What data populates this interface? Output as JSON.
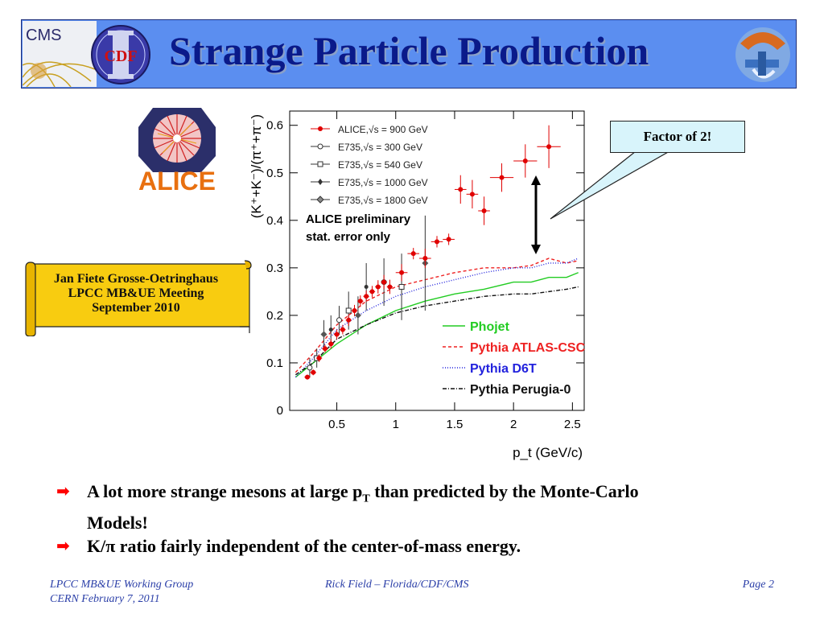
{
  "header": {
    "title": "Strange Particle Production",
    "logo_cms_text": "CMS",
    "logo_cdf_text": "CDF"
  },
  "alice_logo": {
    "text": "ALICE"
  },
  "scroll": {
    "lines": [
      "Jan Fiete Grosse-Oetringhaus",
      "LPCC MB&UE Meeting",
      "September 2010"
    ]
  },
  "callout": {
    "text": "Factor of 2!"
  },
  "chart_data": {
    "type": "scatter",
    "xlabel": "p_t (GeV/c)",
    "ylabel": "(K⁺+K⁻)/(π⁺+π⁻)",
    "xlim": [
      0.1,
      2.6
    ],
    "ylim": [
      0,
      0.63
    ],
    "x_ticks": [
      "0.5",
      "1",
      "1.5",
      "2",
      "2.5"
    ],
    "x_tick_values": [
      0.5,
      1,
      1.5,
      2,
      2.5
    ],
    "y_ticks": [
      "0",
      "0.1",
      "0.2",
      "0.3",
      "0.4",
      "0.5",
      "0.6"
    ],
    "y_tick_values": [
      0,
      0.1,
      0.2,
      0.3,
      0.4,
      0.5,
      0.6
    ],
    "annotation": [
      "ALICE preliminary",
      "stat. error only"
    ],
    "legend_markers": [
      {
        "name": "ALICE,√s = 900 GeV",
        "color": "#e00000",
        "marker": "filled-circle"
      },
      {
        "name": "E735,√s = 300 GeV",
        "color": "#333333",
        "marker": "open-circle"
      },
      {
        "name": "E735,√s = 540 GeV",
        "color": "#333333",
        "marker": "open-square"
      },
      {
        "name": "E735,√s = 1000 GeV",
        "color": "#333333",
        "marker": "star"
      },
      {
        "name": "E735,√s = 1800 GeV",
        "color": "#333333",
        "marker": "diamond"
      }
    ],
    "legend_curves": [
      {
        "name": "Phojet",
        "color": "#22cc22",
        "dash": ""
      },
      {
        "name": "Pythia ATLAS-CSC",
        "color": "#ee2222",
        "dash": "4,3"
      },
      {
        "name": "Pythia D6T",
        "color": "#2222dd",
        "dash": "1,2"
      },
      {
        "name": "Pythia Perugia-0",
        "color": "#111111",
        "dash": "5,2,1,2"
      }
    ],
    "alice": {
      "x": [
        0.25,
        0.3,
        0.35,
        0.4,
        0.45,
        0.5,
        0.55,
        0.6,
        0.65,
        0.7,
        0.75,
        0.8,
        0.85,
        0.9,
        0.95,
        1.05,
        1.15,
        1.25,
        1.35,
        1.45,
        1.55,
        1.65,
        1.75,
        1.9,
        2.1,
        2.3
      ],
      "y": [
        0.07,
        0.08,
        0.11,
        0.13,
        0.14,
        0.16,
        0.17,
        0.19,
        0.21,
        0.23,
        0.24,
        0.25,
        0.26,
        0.27,
        0.26,
        0.29,
        0.33,
        0.32,
        0.355,
        0.36,
        0.465,
        0.455,
        0.42,
        0.49,
        0.525,
        0.555
      ],
      "err": [
        0.005,
        0.006,
        0.008,
        0.008,
        0.01,
        0.01,
        0.01,
        0.012,
        0.012,
        0.012,
        0.012,
        0.012,
        0.014,
        0.015,
        0.015,
        0.018,
        0.012,
        0.02,
        0.012,
        0.012,
        0.03,
        0.03,
        0.03,
        0.03,
        0.035,
        0.045
      ],
      "xerr": [
        0.025,
        0.025,
        0.025,
        0.025,
        0.025,
        0.025,
        0.025,
        0.025,
        0.025,
        0.025,
        0.025,
        0.025,
        0.025,
        0.025,
        0.025,
        0.05,
        0.05,
        0.05,
        0.05,
        0.05,
        0.05,
        0.05,
        0.05,
        0.1,
        0.1,
        0.1
      ]
    },
    "e735": {
      "x": [
        0.27,
        0.33,
        0.39,
        0.45,
        0.52,
        0.6,
        0.68,
        0.75,
        0.9,
        1.05,
        1.25
      ],
      "y": [
        0.09,
        0.11,
        0.16,
        0.17,
        0.19,
        0.21,
        0.2,
        0.26,
        0.27,
        0.26,
        0.31
      ],
      "err": [
        0.02,
        0.02,
        0.03,
        0.03,
        0.03,
        0.04,
        0.04,
        0.05,
        0.05,
        0.07,
        0.1
      ]
    },
    "curves": {
      "x": [
        0.15,
        0.3,
        0.5,
        0.75,
        1.0,
        1.25,
        1.5,
        1.75,
        2.0,
        2.15,
        2.3,
        2.45,
        2.55
      ],
      "phojet": [
        0.07,
        0.1,
        0.14,
        0.18,
        0.21,
        0.23,
        0.245,
        0.255,
        0.27,
        0.27,
        0.28,
        0.28,
        0.29
      ],
      "atlas_csc": [
        0.08,
        0.12,
        0.18,
        0.23,
        0.26,
        0.275,
        0.29,
        0.3,
        0.3,
        0.305,
        0.32,
        0.31,
        0.315
      ],
      "d6t": [
        0.07,
        0.11,
        0.17,
        0.21,
        0.24,
        0.26,
        0.275,
        0.29,
        0.3,
        0.3,
        0.31,
        0.31,
        0.32
      ],
      "perugia0": [
        0.075,
        0.1,
        0.15,
        0.18,
        0.205,
        0.22,
        0.23,
        0.24,
        0.245,
        0.245,
        0.25,
        0.255,
        0.26
      ]
    }
  },
  "bullets": [
    {
      "text": "A lot more strange mesons at large p",
      "sub": "T",
      "text2": " than predicted by the Monte-Carlo",
      "text3": "Models!"
    },
    {
      "text": "K/π ratio fairly independent of the center-of-mass energy."
    }
  ],
  "footer": {
    "left1": "LPCC MB&UE Working Group",
    "left2": "CERN February 7, 2011",
    "center": "Rick Field – Florida/CDF/CMS",
    "right": "Page 2"
  }
}
